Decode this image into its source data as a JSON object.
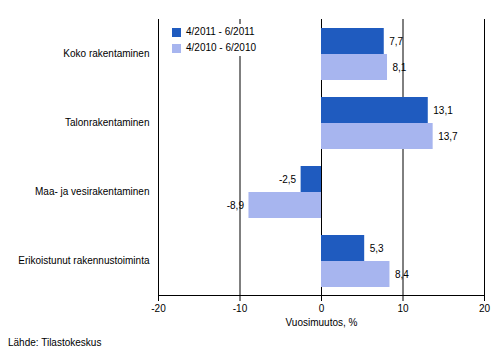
{
  "chart_data": {
    "type": "bar",
    "orientation": "horizontal",
    "categories": [
      "Koko rakentaminen",
      "Talonrakentaminen",
      "Maa- ja vesirakentaminen",
      "Erikoistunut rakennustoiminta"
    ],
    "series": [
      {
        "name": "4/2011 - 6/2011",
        "color": "#1f5bbf",
        "values": [
          7.7,
          13.1,
          -2.5,
          5.3
        ],
        "value_labels": [
          "7,7",
          "13,1",
          "-2,5",
          "5,3"
        ]
      },
      {
        "name": "4/2010 - 6/2010",
        "color": "#a7b5ef",
        "values": [
          8.1,
          13.7,
          -8.9,
          8.4
        ],
        "value_labels": [
          "8,1",
          "13,7",
          "-8,9",
          "8,4"
        ]
      }
    ],
    "x_label": "Vuosimuutos, %",
    "xlim": [
      -20,
      20
    ],
    "xticks": [
      -20,
      -10,
      0,
      10,
      20
    ],
    "grid": true,
    "legend": "upper left",
    "data_labels": true,
    "source": "Lähde: Tilastokeskus"
  }
}
